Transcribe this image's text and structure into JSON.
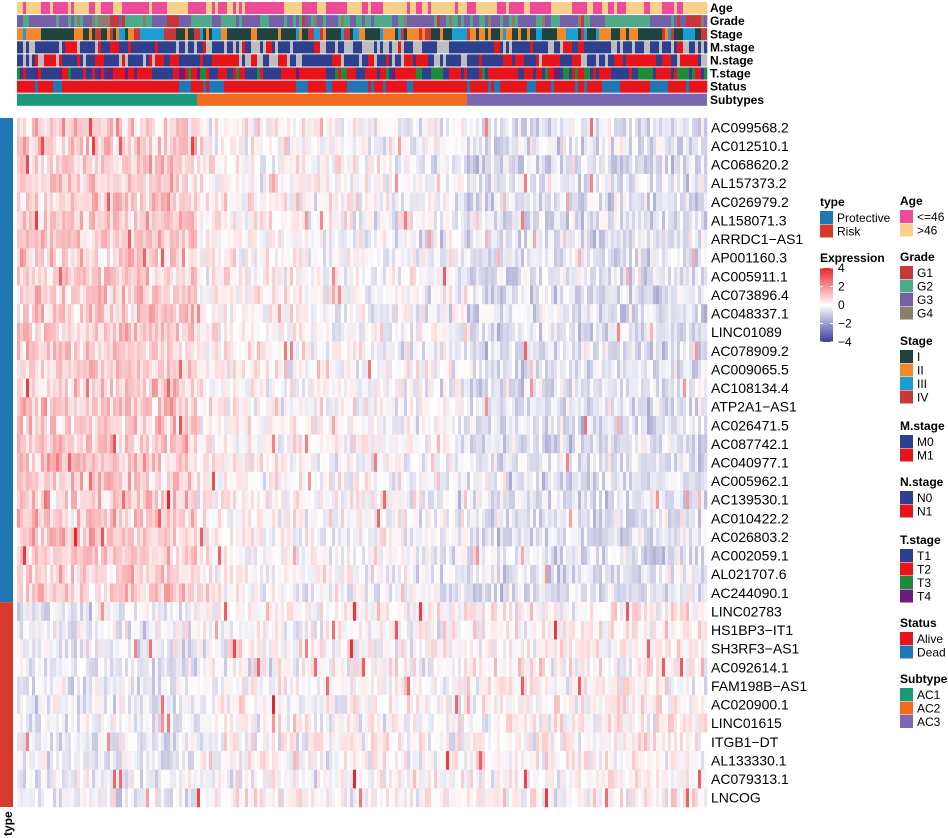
{
  "chart_data": {
    "type": "heatmap",
    "annotation_tracks": [
      {
        "name": "Age",
        "levels": [
          "<=46",
          ">46"
        ]
      },
      {
        "name": "Grade",
        "levels": [
          "G1",
          "G2",
          "G3",
          "G4"
        ]
      },
      {
        "name": "Stage",
        "levels": [
          "I",
          "II",
          "III",
          "IV"
        ]
      },
      {
        "name": "M.stage",
        "levels": [
          "M0",
          "M1"
        ]
      },
      {
        "name": "N.stage",
        "levels": [
          "N0",
          "N1"
        ]
      },
      {
        "name": "T.stage",
        "levels": [
          "T1",
          "T2",
          "T3",
          "T4"
        ]
      },
      {
        "name": "Status",
        "levels": [
          "Alive",
          "Dead"
        ]
      },
      {
        "name": "Subtypes",
        "levels": [
          "AC1",
          "AC2",
          "AC3"
        ]
      }
    ],
    "subtype_split": {
      "AC1": 0.26,
      "AC2": 0.39,
      "AC3": 0.35
    },
    "genes": [
      "AC099568.2",
      "AC012510.1",
      "AC068620.2",
      "AL157373.2",
      "AC026979.2",
      "AL158071.3",
      "ARRDC1−AS1",
      "AP001160.3",
      "AC005911.1",
      "AC073896.4",
      "AC048337.1",
      "LINC01089",
      "AC078909.2",
      "AC009065.5",
      "AC108134.4",
      "ATP2A1−AS1",
      "AC026471.5",
      "AC087742.1",
      "AC040977.1",
      "AC005962.1",
      "AC139530.1",
      "AC010422.2",
      "AC026803.2",
      "AC002059.1",
      "AL021707.6",
      "AC244090.1",
      "LINC02783",
      "HS1BP3−IT1",
      "SH3RF3−AS1",
      "AC092614.1",
      "FAM198B−AS1",
      "AC020900.1",
      "LINC01615",
      "ITGB1−DT",
      "AL133330.1",
      "AC079313.1",
      "LNCOG"
    ],
    "gene_type": {
      "Protective": 26,
      "Risk": 11
    },
    "row_annotation_label": "type",
    "expression_scale": {
      "title": "Expression",
      "ticks": [
        4,
        2,
        0,
        -2,
        -4
      ],
      "min": -4,
      "max": 4
    }
  },
  "legends": {
    "type": {
      "title": "type",
      "items": [
        {
          "label": "Protective",
          "color": "#1f78b4"
        },
        {
          "label": "Risk",
          "color": "#d73a2a"
        }
      ]
    },
    "age": {
      "title": "Age",
      "items": [
        {
          "label": "<=46",
          "color": "#ee4a9a"
        },
        {
          "label": ">46",
          "color": "#f7d08a"
        }
      ]
    },
    "grade": {
      "title": "Grade",
      "items": [
        {
          "label": "G1",
          "color": "#c8383a"
        },
        {
          "label": "G2",
          "color": "#4faa8a"
        },
        {
          "label": "G3",
          "color": "#7560a8"
        },
        {
          "label": "G4",
          "color": "#8c7d6e"
        }
      ]
    },
    "stage": {
      "title": "Stage",
      "items": [
        {
          "label": "I",
          "color": "#21423f"
        },
        {
          "label": "II",
          "color": "#f0882c"
        },
        {
          "label": "III",
          "color": "#1c9ed4"
        },
        {
          "label": "IV",
          "color": "#c8383a"
        }
      ]
    },
    "mstage": {
      "title": "M.stage",
      "items": [
        {
          "label": "M0",
          "color": "#2d3f8e"
        },
        {
          "label": "M1",
          "color": "#e8141c"
        }
      ]
    },
    "nstage": {
      "title": "N.stage",
      "items": [
        {
          "label": "N0",
          "color": "#2d3f8e"
        },
        {
          "label": "N1",
          "color": "#e8141c"
        }
      ]
    },
    "tstage": {
      "title": "T.stage",
      "items": [
        {
          "label": "T1",
          "color": "#2d3f8e"
        },
        {
          "label": "T2",
          "color": "#e8141c"
        },
        {
          "label": "T3",
          "color": "#1e8a3a"
        },
        {
          "label": "T4",
          "color": "#6a1e7a"
        }
      ]
    },
    "status": {
      "title": "Status",
      "items": [
        {
          "label": "Alive",
          "color": "#e8141c"
        },
        {
          "label": "Dead",
          "color": "#1f78b4"
        }
      ]
    },
    "subtype": {
      "title": "Subtype",
      "items": [
        {
          "label": "AC1",
          "color": "#1a9a7a"
        },
        {
          "label": "AC2",
          "color": "#f26b1d"
        },
        {
          "label": "AC3",
          "color": "#7b68b5"
        }
      ]
    }
  },
  "colors": {
    "na": "#bdbdbd",
    "high": "#e8242c",
    "mid": "#ffffff",
    "low": "#3d3d9a"
  }
}
